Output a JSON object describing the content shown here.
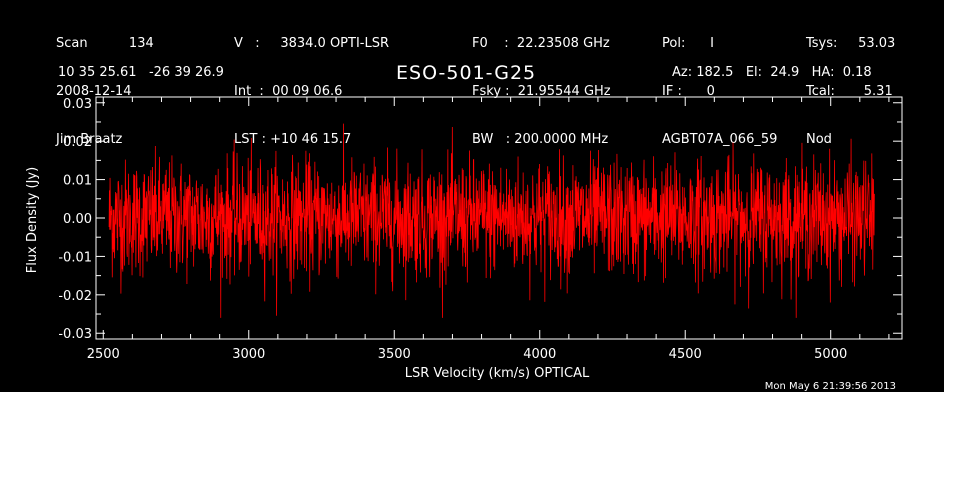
{
  "header": {
    "col1": [
      "Scan          134",
      "2008-12-14",
      "Jim Braatz"
    ],
    "col2": [
      "V   :     3834.0 OPTI-LSR",
      "Int  :  00 09 06.6",
      "LST : +10 46 15.7"
    ],
    "col3": [
      "F0    :  22.23508 GHz",
      "Fsky :  21.95544 GHz",
      "BW   : 200.0000 MHz"
    ],
    "col4": [
      "Pol:      I",
      "IF :      0",
      "AGBT07A_066_59"
    ],
    "col5": [
      "Tsys:     53.03",
      "Tcal:       5.31",
      "Nod"
    ],
    "coords": "10 35 25.61   -26 39 26.9",
    "azel": "Az: 182.5   El:  24.9   HA:  0.18",
    "timestamp": "Mon May  6 21:39:56 2013"
  },
  "chart_data": {
    "type": "line",
    "title": "ESO-501-G25",
    "xlabel": "LSR Velocity (km/s) OPTICAL",
    "ylabel": "Flux Density (Jy)",
    "xlim": [
      2475,
      5245
    ],
    "ylim": [
      -0.0315,
      0.0315
    ],
    "xticks": [
      2500,
      3000,
      3500,
      4000,
      4500,
      5000
    ],
    "xtick_labels": [
      "2500",
      "3000",
      "3500",
      "4000",
      "4500",
      "5000"
    ],
    "yticks": [
      -0.03,
      -0.02,
      -0.01,
      0.0,
      0.01,
      0.02,
      0.03
    ],
    "ytick_labels": [
      "-0.03",
      "-0.02",
      "-0.01",
      "0.00",
      "0.01",
      "0.02",
      "0.03"
    ],
    "series": [
      {
        "color": "#ff0000",
        "x_start": 2520,
        "x_end": 5150,
        "noise_rms": 0.0075,
        "mean": 0.0,
        "min": -0.026,
        "max": 0.027
      }
    ]
  }
}
